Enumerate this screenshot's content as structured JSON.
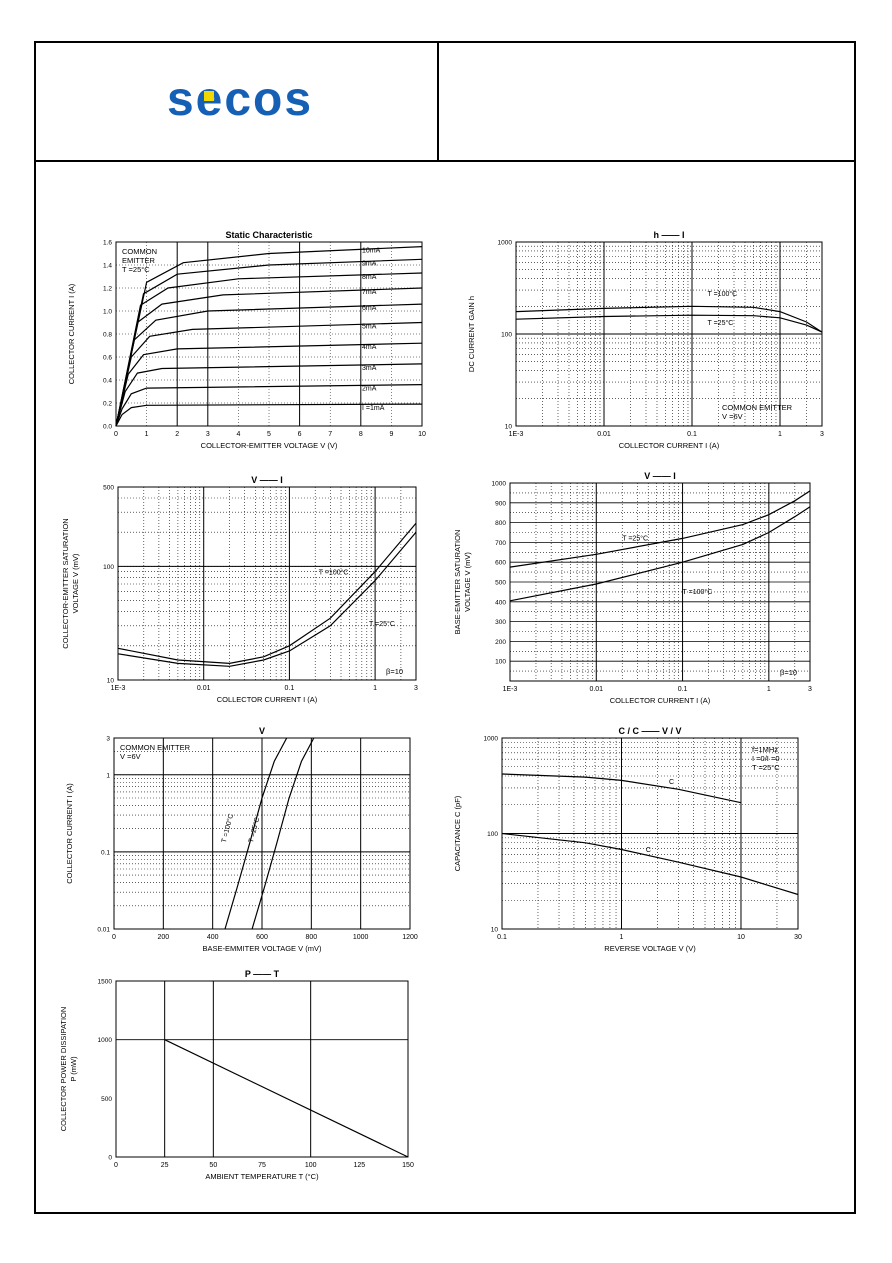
{
  "header": {
    "logo_text": "secos",
    "brand_color": "#1560b4",
    "accent_color": "#f2d800"
  },
  "chart_data": [
    {
      "id": "static",
      "type": "line",
      "title": "Static Characteristic",
      "xlabel": "COLLECTOR-EMITTER VOLTAGE   V   (V)",
      "xlabel_sub": "CE",
      "ylabel": "COLLECTOR CURRENT   I   (A)",
      "ylabel_sub": "C",
      "xscale": "linear",
      "yscale": "linear",
      "xlim": [
        0,
        10
      ],
      "ylim": [
        0,
        1.6
      ],
      "xticks": [
        0,
        1,
        2,
        3,
        4,
        5,
        6,
        7,
        8,
        9,
        10
      ],
      "yticks": [
        0,
        0.2,
        0.4,
        0.6,
        0.8,
        1.0,
        1.2,
        1.4,
        1.6
      ],
      "xtick_labels": [
        "0",
        "1",
        "2",
        "3",
        "4",
        "5",
        "6",
        "7",
        "8",
        "9",
        "10"
      ],
      "ytick_labels": [
        "0.0",
        "0.2",
        "0.4",
        "0.6",
        "0.8",
        "1.0",
        "1.2",
        "1.4",
        "1.6"
      ],
      "vgrid": [
        2,
        3,
        6,
        8
      ],
      "legend_lines": [
        "COMMON",
        "EMITTER",
        "T  =25°C"
      ],
      "series": [
        {
          "name": "I  =1mA",
          "label_parts": [
            "I",
            "B",
            "=1mA"
          ],
          "values": [
            [
              0,
              0
            ],
            [
              0.2,
              0.1
            ],
            [
              0.5,
              0.16
            ],
            [
              1,
              0.18
            ],
            [
              10,
              0.19
            ]
          ]
        },
        {
          "name": "2mA",
          "values": [
            [
              0,
              0
            ],
            [
              0.2,
              0.15
            ],
            [
              0.5,
              0.28
            ],
            [
              1,
              0.33
            ],
            [
              10,
              0.36
            ]
          ]
        },
        {
          "name": "3mA",
          "values": [
            [
              0,
              0
            ],
            [
              0.3,
              0.3
            ],
            [
              0.7,
              0.46
            ],
            [
              1.5,
              0.5
            ],
            [
              10,
              0.54
            ]
          ]
        },
        {
          "name": "4mA",
          "values": [
            [
              0,
              0
            ],
            [
              0.4,
              0.45
            ],
            [
              0.9,
              0.62
            ],
            [
              2,
              0.67
            ],
            [
              10,
              0.72
            ]
          ]
        },
        {
          "name": "5mA",
          "values": [
            [
              0,
              0
            ],
            [
              0.5,
              0.6
            ],
            [
              1.1,
              0.78
            ],
            [
              2.5,
              0.84
            ],
            [
              10,
              0.9
            ]
          ]
        },
        {
          "name": "6mA",
          "values": [
            [
              0,
              0
            ],
            [
              0.6,
              0.75
            ],
            [
              1.3,
              0.92
            ],
            [
              3,
              1.0
            ],
            [
              10,
              1.06
            ]
          ]
        },
        {
          "name": "7mA",
          "values": [
            [
              0,
              0
            ],
            [
              0.7,
              0.9
            ],
            [
              1.5,
              1.06
            ],
            [
              3.5,
              1.14
            ],
            [
              10,
              1.2
            ]
          ]
        },
        {
          "name": "8mA",
          "values": [
            [
              0,
              0
            ],
            [
              0.8,
              1.05
            ],
            [
              1.7,
              1.2
            ],
            [
              4,
              1.28
            ],
            [
              10,
              1.33
            ]
          ]
        },
        {
          "name": "9mA",
          "values": [
            [
              0,
              0
            ],
            [
              0.9,
              1.15
            ],
            [
              2,
              1.32
            ],
            [
              5,
              1.4
            ],
            [
              10,
              1.45
            ]
          ]
        },
        {
          "name": "10mA",
          "values": [
            [
              0,
              0
            ],
            [
              1,
              1.25
            ],
            [
              2.2,
              1.42
            ],
            [
              5,
              1.5
            ],
            [
              10,
              1.56
            ]
          ]
        }
      ]
    },
    {
      "id": "hfe",
      "type": "line",
      "title": "h     ——     I",
      "title_parts": [
        "h",
        "FE",
        "——",
        "I",
        "C"
      ],
      "xlabel": "COLLECTOR CURRENT   I   (A)",
      "xlabel_sub": "C",
      "ylabel": "DC CURRENT GAIN   h",
      "ylabel_sub": "FE",
      "xscale": "log",
      "yscale": "log",
      "xlim": [
        0.001,
        3
      ],
      "ylim": [
        10,
        1000
      ],
      "xticks": [
        0.001,
        0.01,
        0.1,
        1,
        3
      ],
      "xtick_labels": [
        "1E-3",
        "0.01",
        "0.1",
        "1",
        "3"
      ],
      "yticks": [
        10,
        100,
        1000
      ],
      "ytick_labels": [
        "10",
        "100",
        "1000"
      ],
      "notes": [
        "COMMON EMITTER",
        "V  =6V"
      ],
      "series": [
        {
          "name": "T  =100°C",
          "values": [
            [
              0.001,
              175
            ],
            [
              0.01,
              190
            ],
            [
              0.1,
              200
            ],
            [
              0.5,
              195
            ],
            [
              1,
              175
            ],
            [
              2,
              135
            ],
            [
              3,
              105
            ]
          ]
        },
        {
          "name": "T  =25°C",
          "values": [
            [
              0.001,
              145
            ],
            [
              0.01,
              155
            ],
            [
              0.1,
              160
            ],
            [
              0.5,
              158
            ],
            [
              1,
              150
            ],
            [
              2,
              125
            ],
            [
              3,
              105
            ]
          ]
        }
      ]
    },
    {
      "id": "vcesat",
      "type": "line",
      "title": "V        ——     I",
      "title_parts": [
        "V",
        "CEsat",
        "——",
        "I",
        "C"
      ],
      "xlabel": "COLLECTOR CURRENT   I   (A)",
      "xlabel_sub": "C",
      "ylabel_lines": [
        "COLLECTOR-EMITTER SATURATION",
        "VOLTAGE   V        (mV)"
      ],
      "xscale": "log",
      "yscale": "log",
      "xlim": [
        0.001,
        3
      ],
      "ylim": [
        10,
        500
      ],
      "xticks": [
        0.001,
        0.01,
        0.1,
        1,
        3
      ],
      "xtick_labels": [
        "1E-3",
        "0.01",
        "0.1",
        "1",
        "3"
      ],
      "yticks": [
        10,
        100,
        500
      ],
      "ytick_labels": [
        "10",
        "100",
        "500"
      ],
      "notes": [
        "β=10"
      ],
      "series": [
        {
          "name": "T  =100°C",
          "values": [
            [
              0.001,
              19
            ],
            [
              0.005,
              15
            ],
            [
              0.02,
              14
            ],
            [
              0.05,
              16
            ],
            [
              0.1,
              20
            ],
            [
              0.3,
              35
            ],
            [
              1,
              90
            ],
            [
              3,
              240
            ]
          ]
        },
        {
          "name": "T  =25°C",
          "values": [
            [
              0.001,
              17
            ],
            [
              0.005,
              14
            ],
            [
              0.02,
              13.2
            ],
            [
              0.05,
              15
            ],
            [
              0.1,
              18
            ],
            [
              0.3,
              30
            ],
            [
              1,
              75
            ],
            [
              3,
              200
            ]
          ]
        }
      ]
    },
    {
      "id": "vbesat",
      "type": "line",
      "title": "V        ——     I",
      "title_parts": [
        "V",
        "BEsat",
        "——",
        "I",
        "C"
      ],
      "xlabel": "COLLECTOR CURRENT   I   (A)",
      "xlabel_sub": "C",
      "ylabel_lines": [
        "BASE-EMITTER SATURATION",
        "VOLTAGE   V       (mV)"
      ],
      "xscale": "log",
      "yscale": "linear",
      "xlim": [
        0.001,
        3
      ],
      "ylim": [
        0,
        1000
      ],
      "xticks": [
        0.001,
        0.01,
        0.1,
        1,
        3
      ],
      "xtick_labels": [
        "1E-3",
        "0.01",
        "0.1",
        "1",
        "3"
      ],
      "yticks": [
        100,
        200,
        300,
        400,
        500,
        600,
        700,
        800,
        900,
        1000
      ],
      "ytick_labels": [
        "100",
        "200",
        "300",
        "400",
        "500",
        "600",
        "700",
        "800",
        "900",
        "1000"
      ],
      "notes": [
        "β=10"
      ],
      "series": [
        {
          "name": "T  =25°C",
          "values": [
            [
              0.001,
              575
            ],
            [
              0.01,
              640
            ],
            [
              0.1,
              720
            ],
            [
              0.5,
              790
            ],
            [
              1,
              840
            ],
            [
              2,
              910
            ],
            [
              3,
              960
            ]
          ]
        },
        {
          "name": "T  =100°C",
          "values": [
            [
              0.001,
              405
            ],
            [
              0.01,
              490
            ],
            [
              0.1,
              600
            ],
            [
              0.5,
              690
            ],
            [
              1,
              750
            ],
            [
              2,
              830
            ],
            [
              3,
              880
            ]
          ]
        }
      ]
    },
    {
      "id": "vbe",
      "type": "line",
      "title": "V",
      "title_parts": [
        "V",
        "BE"
      ],
      "xlabel": "BASE-EMMITER VOLTAGE   V     (mV)",
      "xlabel_sub": "BE",
      "ylabel": "COLLECTOR CURRENT   I   (A)",
      "ylabel_sub": "C",
      "xscale": "linear",
      "yscale": "log",
      "xlim": [
        0,
        1200
      ],
      "ylim": [
        0.01,
        3
      ],
      "xticks": [
        0,
        200,
        400,
        600,
        800,
        1000,
        1200
      ],
      "xtick_labels": [
        "0",
        "200",
        "400",
        "600",
        "800",
        "1000",
        "1200"
      ],
      "yticks": [
        0.01,
        0.1,
        1,
        3
      ],
      "ytick_labels": [
        "0.01",
        "0.1",
        "1",
        "3"
      ],
      "vgrid": [
        200,
        400,
        600,
        800,
        1000
      ],
      "notes": [
        "COMMON EMITTER",
        "V  =6V"
      ],
      "series": [
        {
          "name": "T  =100°C",
          "values": [
            [
              450,
              0.01
            ],
            [
              500,
              0.035
            ],
            [
              550,
              0.13
            ],
            [
              600,
              0.5
            ],
            [
              650,
              1.5
            ],
            [
              700,
              3
            ]
          ]
        },
        {
          "name": "T  =25°C",
          "values": [
            [
              560,
              0.01
            ],
            [
              610,
              0.035
            ],
            [
              660,
              0.13
            ],
            [
              710,
              0.5
            ],
            [
              760,
              1.5
            ],
            [
              810,
              3
            ]
          ]
        }
      ]
    },
    {
      "id": "cap",
      "type": "line",
      "title": "C   / C     ——     V   / V",
      "title_parts": [
        "C",
        "ob",
        "/ C",
        "ib",
        "——",
        "V",
        "CB",
        "/ V",
        "EB"
      ],
      "xlabel": "REVERSE VOLTAGE   V   (V)",
      "ylabel": "CAPACITANCE   C   (pF)",
      "xscale": "log",
      "yscale": "log",
      "xlim": [
        0.1,
        30
      ],
      "ylim": [
        10,
        1000
      ],
      "xticks": [
        0.1,
        1,
        10,
        30
      ],
      "xtick_labels": [
        "0.1",
        "1",
        "10",
        "30"
      ],
      "yticks": [
        10,
        100,
        1000
      ],
      "ytick_labels": [
        "10",
        "100",
        "1000"
      ],
      "notes": [
        "f=1MHz",
        "I  =0/I  =0",
        "T  =25°C"
      ],
      "series": [
        {
          "name": "C",
          "label_sub": "ib",
          "values": [
            [
              0.1,
              420
            ],
            [
              0.5,
              390
            ],
            [
              1,
              360
            ],
            [
              3,
              290
            ],
            [
              10,
              210
            ]
          ]
        },
        {
          "name": "C",
          "label_sub": "ob",
          "values": [
            [
              0.1,
              100
            ],
            [
              0.5,
              80
            ],
            [
              1,
              68
            ],
            [
              3,
              50
            ],
            [
              10,
              35
            ],
            [
              30,
              23
            ]
          ]
        }
      ]
    },
    {
      "id": "pc",
      "type": "line",
      "title": "P     ——     T",
      "title_parts": [
        "P",
        "C",
        "——",
        "T",
        "a"
      ],
      "xlabel": "AMBIENT TEMPERATURE   T   (°C)",
      "xlabel_sub": "a",
      "ylabel_lines": [
        "COLLECTOR POWER DISSIPATION",
        "P   (mW)"
      ],
      "xscale": "linear",
      "yscale": "linear",
      "xlim": [
        0,
        150
      ],
      "ylim": [
        0,
        1500
      ],
      "xticks": [
        0,
        25,
        50,
        75,
        100,
        125,
        150
      ],
      "xtick_labels": [
        "0",
        "25",
        "50",
        "75",
        "100",
        "125",
        "150"
      ],
      "yticks": [
        0,
        500,
        1000,
        1500
      ],
      "ytick_labels": [
        "0",
        "500",
        "1000",
        "1500"
      ],
      "vgrid": [
        25,
        50,
        100
      ],
      "series": [
        {
          "name": "",
          "values": [
            [
              25,
              1000
            ],
            [
              150,
              0
            ]
          ]
        }
      ]
    }
  ]
}
